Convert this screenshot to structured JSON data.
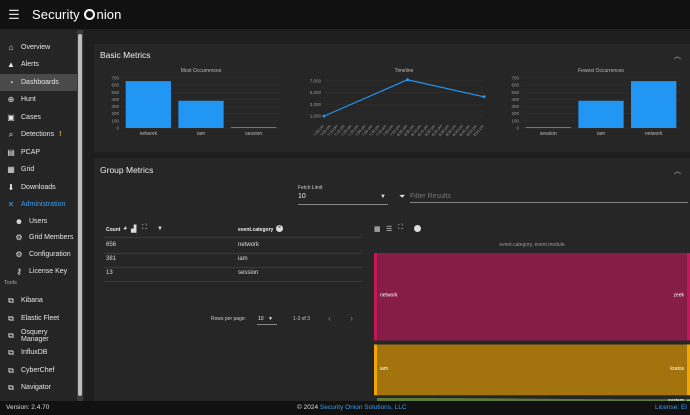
{
  "app": {
    "title_a": "Security ",
    "title_b": "nion"
  },
  "sidebar": {
    "items": [
      {
        "label": "Overview",
        "icon": "home-icon",
        "glyph": "⌂"
      },
      {
        "label": "Alerts",
        "icon": "bell-icon",
        "glyph": "▲"
      },
      {
        "label": "Dashboards",
        "icon": "dashboard-icon",
        "glyph": "◔"
      },
      {
        "label": "Hunt",
        "icon": "crosshair-icon",
        "glyph": "⊕"
      },
      {
        "label": "Cases",
        "icon": "briefcase-icon",
        "glyph": "▣"
      },
      {
        "label": "Detections",
        "icon": "search-icon",
        "glyph": "⌕",
        "badge": "!"
      },
      {
        "label": "PCAP",
        "icon": "pcap-icon",
        "glyph": "▤"
      },
      {
        "label": "Grid",
        "icon": "grid-icon",
        "glyph": "▦"
      },
      {
        "label": "Downloads",
        "icon": "download-icon",
        "glyph": "⬇"
      },
      {
        "label": "Administration",
        "icon": "wrench-icon",
        "glyph": "✕"
      },
      {
        "label": "Users",
        "icon": "users-icon",
        "glyph": "☻"
      },
      {
        "label": "Grid Members",
        "icon": "network-icon",
        "glyph": "⚙"
      },
      {
        "label": "Configuration",
        "icon": "gear-icon",
        "glyph": "⚙"
      },
      {
        "label": "License Key",
        "icon": "key-icon",
        "glyph": "⚷"
      }
    ],
    "tools_label": "Tools",
    "tools": [
      {
        "label": "Kibana",
        "icon": "external-link-icon"
      },
      {
        "label": "Elastic Fleet",
        "icon": "external-link-icon"
      },
      {
        "label": "Osquery Manager",
        "icon": "external-link-icon"
      },
      {
        "label": "InfluxDB",
        "icon": "external-link-icon"
      },
      {
        "label": "CyberChef",
        "icon": "external-link-icon"
      },
      {
        "label": "Navigator",
        "icon": "external-link-icon"
      }
    ]
  },
  "basic_metrics": {
    "title": "Basic Metrics",
    "most": {
      "title": "Most Occurrences",
      "chart_data": {
        "type": "bar",
        "title": "Most Occurrences",
        "categories": [
          "network",
          "iam",
          "session"
        ],
        "values": [
          656,
          381,
          13
        ],
        "yticks": [
          "0",
          "100",
          "200",
          "300",
          "400",
          "500",
          "600",
          "700"
        ],
        "ylim": [
          0,
          700
        ],
        "color": "#2196f3"
      }
    },
    "timeline": {
      "title": "Timeline",
      "chart_data": {
        "type": "line",
        "title": "Timeline",
        "x": [
          "7:00 pm",
          "7:05 pm",
          "7:10 pm",
          "7:15 pm",
          "7:20 pm",
          "7:25 pm",
          "7:30 pm",
          "7:35 pm",
          "7:40 pm",
          "7:45 pm",
          "7:50 pm",
          "7:55 pm",
          "8:00 pm",
          "8:05 pm",
          "8:10 pm",
          "8:15 pm",
          "8:20 pm",
          "8:25 pm",
          "8:30 pm",
          "8:35 pm",
          "8:40 pm",
          "8:45 pm",
          "8:50 pm",
          "8:55 pm"
        ],
        "points": [
          {
            "x": "7:00 pm",
            "y": 1000
          },
          {
            "x": "8:00 pm",
            "y": 7200
          },
          {
            "x": "8:55 pm",
            "y": 4300
          }
        ],
        "yticks": [
          "1,000",
          "3,000",
          "5,000",
          "7,000"
        ],
        "ylim": [
          0,
          7500
        ],
        "color": "#2196f3"
      }
    },
    "fewest": {
      "title": "Fewest Occurrences",
      "chart_data": {
        "type": "bar",
        "title": "Fewest Occurrences",
        "categories": [
          "session",
          "iam",
          "network"
        ],
        "values": [
          13,
          381,
          656
        ],
        "yticks": [
          "0",
          "100",
          "200",
          "300",
          "400",
          "500",
          "600",
          "700"
        ],
        "ylim": [
          0,
          700
        ],
        "color": "#2196f3"
      }
    }
  },
  "group_metrics": {
    "title": "Group Metrics",
    "fetch_limit_label": "Fetch Limit",
    "fetch_limit_value": "10",
    "filter_placeholder": "Filter Results",
    "table": {
      "col_count": "Count",
      "col_field": "event.category",
      "rows": [
        {
          "count": "656",
          "value": "network"
        },
        {
          "count": "381",
          "value": "iam"
        },
        {
          "count": "13",
          "value": "session"
        }
      ],
      "rows_per_page_label": "Rows per page:",
      "rows_per_page_value": "10",
      "range": "1-3 of 3"
    },
    "sankey": {
      "title": "event.category, event.module",
      "chart_data": {
        "type": "sankey",
        "nodes_left": [
          {
            "name": "network",
            "value": 656,
            "color": "#c2185b"
          },
          {
            "name": "iam",
            "value": 381,
            "color": "#f0a500"
          }
        ],
        "nodes_right": [
          {
            "name": "zeek",
            "value": 656
          },
          {
            "name": "kratos",
            "value": 381
          },
          {
            "name": "system",
            "value": 13
          }
        ]
      }
    }
  },
  "footer": {
    "version": "Version: 2.4.70",
    "copy_prefix": "© 2024 ",
    "copy_link": "Security Onion Solutions, LLC",
    "license": "License: El"
  }
}
